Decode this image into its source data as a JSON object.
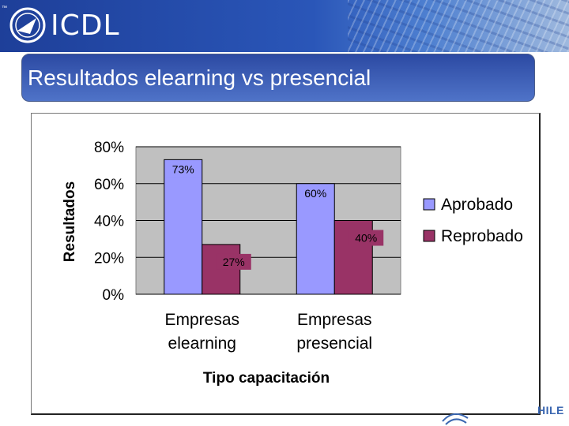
{
  "header": {
    "trademark": "™",
    "logo_text": "ICDL",
    "slide_title": "Resultados elearning vs presencial",
    "corner_text": "HILE"
  },
  "colors": {
    "aprobado": "#9999ff",
    "reprobado": "#993366",
    "plot_bg": "#c0c0c0"
  },
  "chart_data": {
    "type": "bar",
    "categories": [
      [
        "Empresas",
        "elearning"
      ],
      [
        "Empresas",
        "presencial"
      ]
    ],
    "series": [
      {
        "name": "Aprobado",
        "values": [
          73,
          60
        ],
        "labels": [
          "73%",
          "60%"
        ]
      },
      {
        "name": "Reprobado",
        "values": [
          27,
          40
        ],
        "labels": [
          "27%",
          "40%"
        ]
      }
    ],
    "ylim": [
      0,
      80
    ],
    "yticks": [
      {
        "value": 80,
        "label": "80%"
      },
      {
        "value": 60,
        "label": "60%"
      },
      {
        "value": 40,
        "label": "40%"
      },
      {
        "value": 20,
        "label": "20%"
      },
      {
        "value": 0,
        "label": "0%"
      }
    ],
    "xlabel": "Tipo capacitación",
    "ylabel": "Resultados",
    "legend_position": "right",
    "grid": true
  }
}
